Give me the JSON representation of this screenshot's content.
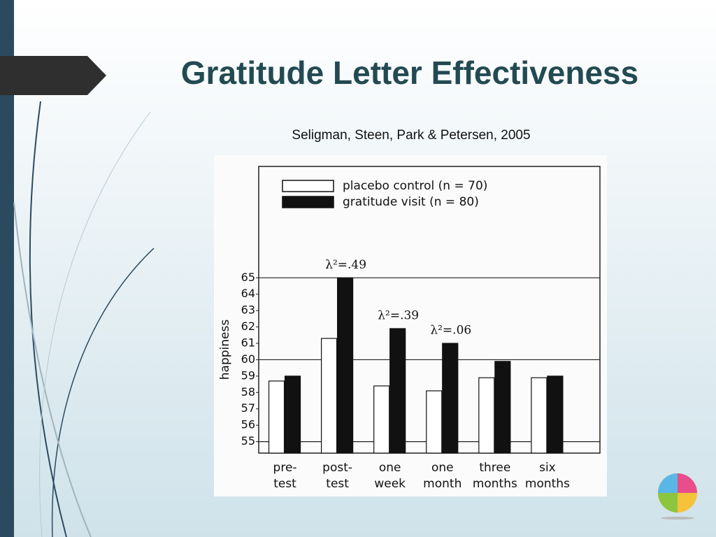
{
  "chart_data": {
    "type": "bar",
    "title": "Gratitude Letter Effectiveness",
    "subtitle": "Seligman, Steen, Park & Petersen, 2005",
    "ylabel": "happiness",
    "categories": [
      "pre-\ntest",
      "post-\ntest",
      "one\nweek",
      "one\nmonth",
      "three\nmonths",
      "six\nmonths"
    ],
    "series": [
      {
        "name": "placebo control (n = 70)",
        "color": "#ffffff",
        "values": [
          58.7,
          61.3,
          58.4,
          58.1,
          58.9,
          58.9
        ]
      },
      {
        "name": "gratitude visit (n = 80)",
        "color": "#111111",
        "values": [
          59.0,
          65.0,
          61.9,
          61.0,
          59.9,
          59.0
        ]
      }
    ],
    "annotations": [
      null,
      "λ²=.49",
      "λ²=.39",
      "λ²=.06",
      null,
      null
    ],
    "ylim": [
      54.3,
      71.8
    ],
    "yticks": [
      55,
      56,
      57,
      58,
      59,
      60,
      61,
      62,
      63,
      64,
      65
    ],
    "ygrid": [
      55,
      60,
      65
    ],
    "legend": "top-left"
  }
}
